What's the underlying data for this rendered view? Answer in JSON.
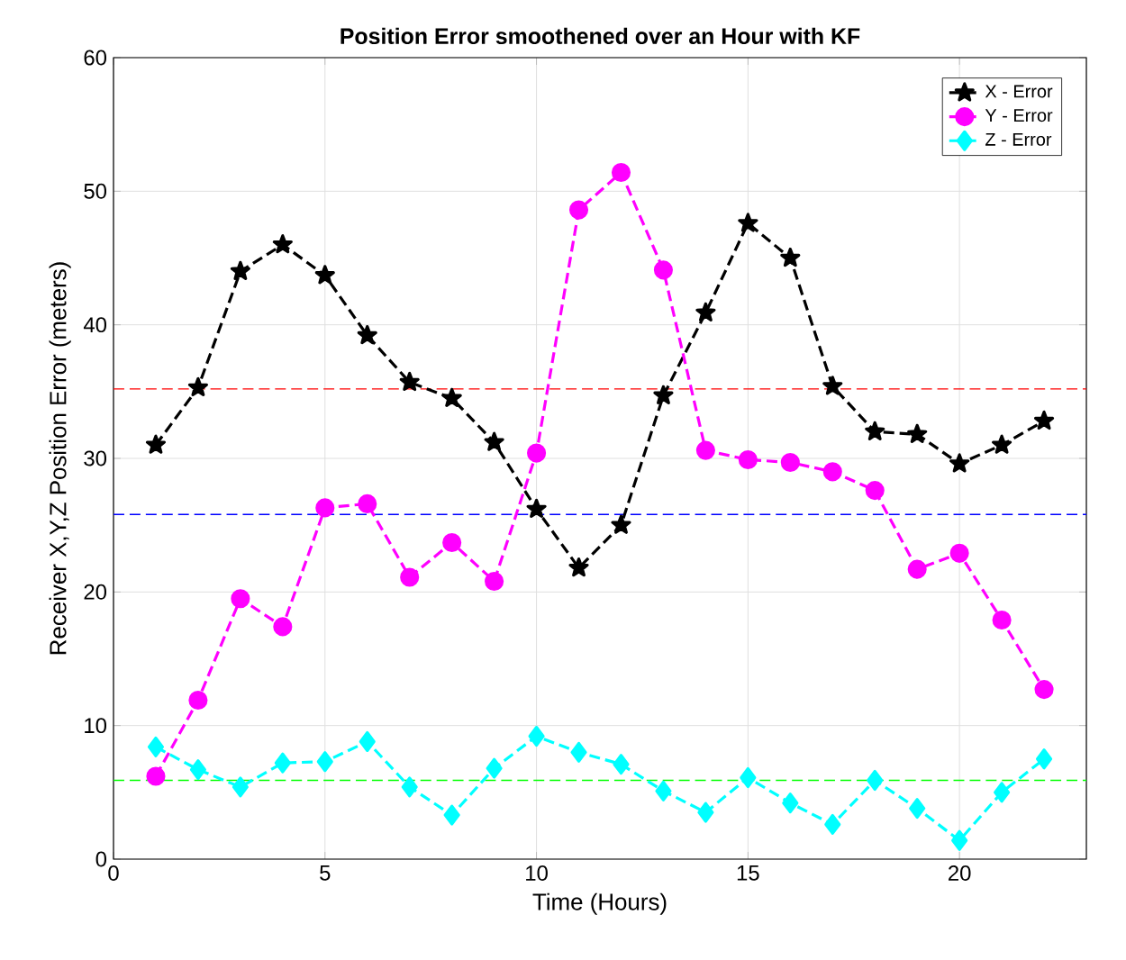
{
  "chart_data": {
    "type": "line",
    "title": "Position Error smoothened over an Hour with KF",
    "xlabel": "Time (Hours)",
    "ylabel": "Receiver X,Y,Z Position Error (meters)",
    "x": [
      1,
      2,
      3,
      4,
      5,
      6,
      7,
      8,
      9,
      10,
      11,
      12,
      13,
      14,
      15,
      16,
      17,
      18,
      19,
      20,
      21,
      22
    ],
    "series": [
      {
        "name": "X - Error",
        "color": "#000000",
        "marker": "star",
        "values": [
          31,
          35.3,
          44,
          46,
          43.7,
          39.2,
          35.7,
          34.5,
          31.2,
          26.2,
          21.8,
          25,
          34.7,
          40.9,
          47.6,
          45,
          35.4,
          32,
          31.8,
          29.6,
          31,
          32.8
        ]
      },
      {
        "name": "Y - Error",
        "color": "#ff00ff",
        "marker": "circle",
        "values": [
          6.2,
          11.9,
          19.5,
          17.4,
          26.3,
          26.6,
          21.1,
          23.7,
          20.8,
          30.4,
          48.6,
          51.4,
          44.1,
          30.6,
          29.9,
          29.7,
          29,
          27.6,
          21.7,
          22.9,
          17.9,
          12.7
        ]
      },
      {
        "name": "Z - Error",
        "color": "#00ffff",
        "marker": "diamond",
        "values": [
          8.4,
          6.7,
          5.4,
          7.2,
          7.3,
          8.8,
          5.4,
          3.3,
          6.8,
          9.2,
          8,
          7.1,
          5.1,
          3.5,
          6.1,
          4.2,
          2.6,
          5.9,
          3.8,
          1.4,
          5,
          7.5
        ]
      }
    ],
    "ref_lines": [
      {
        "axis": "y",
        "value": 35.2,
        "color": "#ff0000",
        "line_style": "dashed"
      },
      {
        "axis": "y",
        "value": 25.8,
        "color": "#0000ff",
        "line_style": "dashed"
      },
      {
        "axis": "y",
        "value": 5.9,
        "color": "#00ff00",
        "line_style": "dashed"
      }
    ],
    "xlim": [
      0,
      23
    ],
    "ylim": [
      0,
      60
    ],
    "xticks": [
      0,
      5,
      10,
      15,
      20
    ],
    "yticks": [
      0,
      10,
      20,
      30,
      40,
      50,
      60
    ],
    "grid": true,
    "legend": "top right",
    "line_style": "dashed"
  }
}
